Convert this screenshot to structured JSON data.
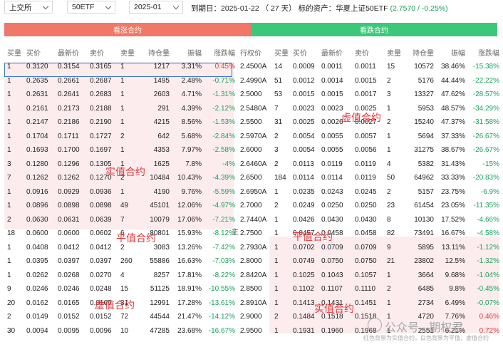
{
  "toolbar": {
    "exchange": "上交所",
    "underlying": "50ETF",
    "month": "2025-01",
    "expiry_label": "到期日：",
    "expiry_date": "2025-01-22",
    "days": "（ 27 天）",
    "asset_label": "标的资产：华夏上证50ETF",
    "asset_price": "(2.7570 / -0.25%)"
  },
  "sections": {
    "call_title": "看涨合约",
    "put_title": "看跌合约"
  },
  "call_headers": [
    "买量",
    "买价",
    "最新价",
    "卖价",
    "卖量",
    "持仓量",
    "振幅",
    "涨跌幅"
  ],
  "put_headers": [
    "行权价",
    "买量",
    "买价",
    "最新价",
    "卖价",
    "卖量",
    "持仓量",
    "振幅",
    "涨跌幅"
  ],
  "call_rows": [
    [
      "1",
      "0.3120",
      "0.3154",
      "0.3165",
      "1",
      "1217",
      "3.31%",
      "0.45%"
    ],
    [
      "1",
      "0.2635",
      "0.2661",
      "0.2687",
      "1",
      "1495",
      "2.48%",
      "-0.71%"
    ],
    [
      "1",
      "0.2631",
      "0.2641",
      "0.2683",
      "1",
      "2603",
      "4.71%",
      "-1.31%"
    ],
    [
      "1",
      "0.2161",
      "0.2173",
      "0.2188",
      "1",
      "291",
      "4.39%",
      "-2.12%"
    ],
    [
      "1",
      "0.2147",
      "0.2186",
      "0.2190",
      "1",
      "4215",
      "8.56%",
      "-1.53%"
    ],
    [
      "1",
      "0.1704",
      "0.1711",
      "0.1727",
      "2",
      "642",
      "5.68%",
      "-2.84%"
    ],
    [
      "1",
      "0.1693",
      "0.1700",
      "0.1697",
      "1",
      "4353",
      "7.97%",
      "-2.58%"
    ],
    [
      "3",
      "0.1280",
      "0.1296",
      "0.1305",
      "1",
      "1625",
      "7.8%",
      "-4%"
    ],
    [
      "7",
      "0.1262",
      "0.1262",
      "0.1270",
      "2",
      "10484",
      "10.43%",
      "-4.39%"
    ],
    [
      "1",
      "0.0916",
      "0.0929",
      "0.0936",
      "1",
      "4190",
      "9.76%",
      "-5.59%"
    ],
    [
      "1",
      "0.0896",
      "0.0898",
      "0.0898",
      "49",
      "45101",
      "12.06%",
      "-4.97%"
    ],
    [
      "2",
      "0.0630",
      "0.0631",
      "0.0639",
      "7",
      "10079",
      "17.06%",
      "-7.21%"
    ],
    [
      "18",
      "0.0600",
      "0.0600",
      "0.0602",
      "6",
      "80801",
      "15.93%",
      "-8.12%"
    ],
    [
      "1",
      "0.0408",
      "0.0412",
      "0.0412",
      "2",
      "3083",
      "13.26%",
      "-7.42%"
    ],
    [
      "1",
      "0.0395",
      "0.0397",
      "0.0397",
      "260",
      "55886",
      "16.63%",
      "-7.03%"
    ],
    [
      "1",
      "0.0262",
      "0.0268",
      "0.0270",
      "4",
      "8257",
      "17.81%",
      "-8.22%"
    ],
    [
      "9",
      "0.0246",
      "0.0246",
      "0.0248",
      "15",
      "51125",
      "18.91%",
      "-10.55%"
    ],
    [
      "20",
      "0.0162",
      "0.0165",
      "0.0169",
      "31",
      "12991",
      "17.28%",
      "-13.61%"
    ],
    [
      "2",
      "0.0149",
      "0.0152",
      "0.0152",
      "72",
      "44544",
      "21.47%",
      "-14.12%"
    ],
    [
      "30",
      "0.0094",
      "0.0095",
      "0.0096",
      "10",
      "47285",
      "23.68%",
      "-16.67%"
    ]
  ],
  "put_rows": [
    [
      "2.4500A",
      "14",
      "0.0009",
      "0.0011",
      "0.0011",
      "15",
      "10572",
      "38.46%",
      "-15.38%"
    ],
    [
      "2.4990A",
      "51",
      "0.0012",
      "0.0014",
      "0.0015",
      "2",
      "5176",
      "44.44%",
      "-22.22%"
    ],
    [
      "2.5000",
      "53",
      "0.0015",
      "0.0015",
      "0.0017",
      "3",
      "13327",
      "47.62%",
      "-28.57%"
    ],
    [
      "2.5480A",
      "7",
      "0.0023",
      "0.0023",
      "0.0025",
      "1",
      "5953",
      "48.57%",
      "-34.29%"
    ],
    [
      "2.5500",
      "31",
      "0.0025",
      "0.0026",
      "0.0027",
      "2",
      "15240",
      "47.37%",
      "-31.58%"
    ],
    [
      "2.5970A",
      "2",
      "0.0054",
      "0.0055",
      "0.0057",
      "1",
      "5694",
      "37.33%",
      "-26.67%"
    ],
    [
      "2.6000",
      "3",
      "0.0054",
      "0.0055",
      "0.0056",
      "1",
      "31275",
      "38.67%",
      "-26.67%"
    ],
    [
      "2.6460A",
      "2",
      "0.0113",
      "0.0119",
      "0.0119",
      "4",
      "5382",
      "31.43%",
      "-15%"
    ],
    [
      "2.6500",
      "184",
      "0.0114",
      "0.0114",
      "0.0119",
      "50",
      "64962",
      "33.33%",
      "-20.83%"
    ],
    [
      "2.6950A",
      "1",
      "0.0235",
      "0.0243",
      "0.0245",
      "2",
      "5157",
      "23.75%",
      "-6.9%"
    ],
    [
      "2.7000",
      "2",
      "0.0249",
      "0.0250",
      "0.0250",
      "23",
      "61454",
      "23.05%",
      "-11.35%"
    ],
    [
      "2.7440A",
      "1",
      "0.0426",
      "0.0430",
      "0.0430",
      "8",
      "10130",
      "17.52%",
      "-4.66%"
    ],
    [
      "2.7500",
      "1",
      "0.0457",
      "0.0458",
      "0.0458",
      "82",
      "73491",
      "16.67%",
      "-4.58%"
    ],
    [
      "2.7930A",
      "1",
      "0.0702",
      "0.0709",
      "0.0709",
      "9",
      "5895",
      "13.11%",
      "-1.12%"
    ],
    [
      "2.8000",
      "1",
      "0.0749",
      "0.0750",
      "0.0750",
      "21",
      "23802",
      "12.5%",
      "-1.32%"
    ],
    [
      "2.8420A",
      "1",
      "0.1025",
      "0.1043",
      "0.1057",
      "1",
      "3664",
      "9.68%",
      "-1.04%"
    ],
    [
      "2.8500",
      "1",
      "0.1102",
      "0.1107",
      "0.1110",
      "2",
      "6485",
      "9.8%",
      "-0.45%"
    ],
    [
      "2.8910A",
      "1",
      "0.1413",
      "0.1431",
      "0.1451",
      "1",
      "2734",
      "6.49%",
      "-0.07%"
    ],
    [
      "2.9000",
      "2",
      "0.1484",
      "0.1518",
      "0.1518",
      "1",
      "4720",
      "7.76%",
      "0.46%"
    ],
    [
      "2.9500",
      "1",
      "0.1931",
      "0.1960",
      "0.1968",
      "1",
      "2551",
      "6.21%",
      "0.72%"
    ]
  ],
  "annotations": {
    "call_itm": "实值合约",
    "call_atm": "平值合约",
    "call_otm": "虚值合约",
    "put_otm": "虚值合约",
    "put_atm": "平值合约",
    "put_itm": "实值合约"
  },
  "marker": "主",
  "watermark": {
    "brand": "公众号 · 期权君",
    "note": "红色背景为实值合约，白色背景为平值、虚值合约"
  },
  "colors": {
    "call_header": "#f07868",
    "put_header": "#3cc87a",
    "negative": "#19a35b",
    "positive": "#e6393a",
    "annotation": "#e0353a"
  }
}
